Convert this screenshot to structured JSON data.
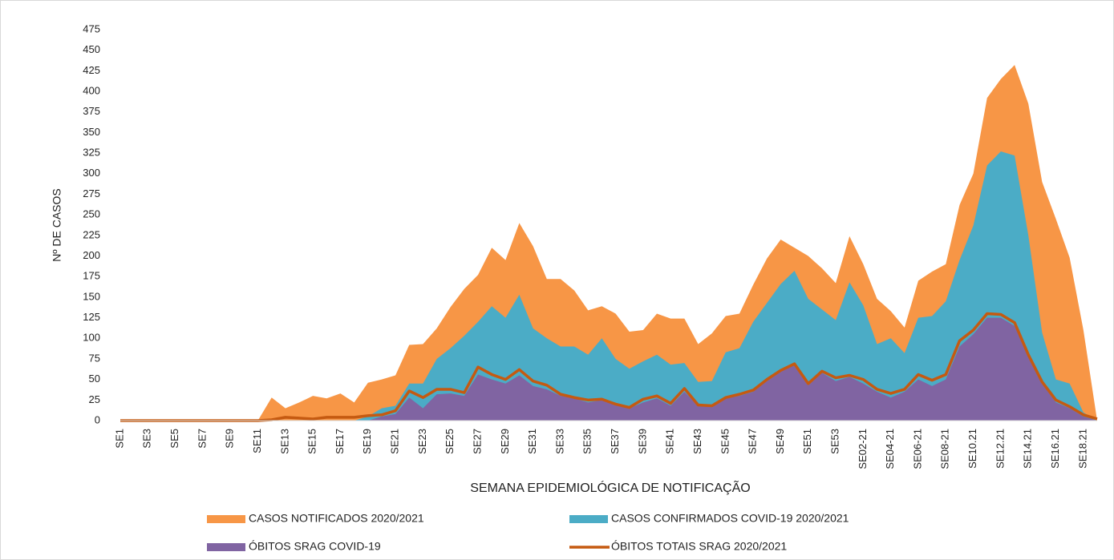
{
  "chart_data": {
    "type": "area",
    "ylabel": "Nº DE CASOS",
    "xlabel": "SEMANA EPIDEMIOLÓGICA DE NOTIFICAÇÃO",
    "categories": [
      "SE1",
      null,
      "SE3",
      null,
      "SE5",
      null,
      "SE7",
      null,
      "SE9",
      null,
      "SE11",
      null,
      "SE13",
      null,
      "SE15",
      null,
      "SE17",
      null,
      "SE19",
      null,
      "SE21",
      null,
      "SE23",
      null,
      "SE25",
      null,
      "SE27",
      null,
      "SE29",
      null,
      "SE31",
      null,
      "SE33",
      null,
      "SE35",
      null,
      "SE37",
      null,
      "SE39",
      null,
      "SE41",
      null,
      "SE43",
      null,
      "SE45",
      null,
      "SE47",
      null,
      "SE49",
      null,
      "SE51",
      null,
      "SE53",
      null,
      "SE02-21",
      null,
      "SE04-21",
      null,
      "SE06-21",
      null,
      "SE08-21",
      null,
      "SE10.21",
      null,
      "SE12.21",
      null,
      "SE14.21",
      null,
      "SE16.21",
      null,
      "SE18.21",
      null
    ],
    "ylim": [
      0,
      475
    ],
    "yticks": [
      0,
      25,
      50,
      75,
      100,
      125,
      150,
      175,
      200,
      225,
      250,
      275,
      300,
      325,
      350,
      375,
      400,
      425,
      450,
      475
    ],
    "series": [
      {
        "name": "CASOS NOTIFICADOS 2020/2021",
        "type": "area",
        "color": "#f79646",
        "values": [
          0,
          0,
          0,
          0,
          0,
          0,
          0,
          0,
          0,
          0,
          0,
          28,
          15,
          22,
          30,
          27,
          33,
          22,
          46,
          50,
          55,
          92,
          93,
          112,
          138,
          160,
          177,
          210,
          195,
          240,
          212,
          172,
          172,
          158,
          134,
          139,
          130,
          108,
          110,
          130,
          124,
          124,
          93,
          106,
          127,
          130,
          165,
          197,
          220,
          210,
          200,
          185,
          167,
          224,
          190,
          148,
          133,
          113,
          170,
          181,
          190,
          262,
          300,
          392,
          415,
          432,
          385,
          290,
          245,
          198,
          110,
          0
        ]
      },
      {
        "name": "CASOS CONFIRMADOS COVID-19 2020/2021",
        "type": "area",
        "color": "#4bacc6",
        "values": [
          0,
          0,
          0,
          0,
          0,
          0,
          0,
          0,
          0,
          0,
          0,
          0,
          0,
          0,
          0,
          0,
          0,
          0,
          5,
          15,
          18,
          45,
          45,
          75,
          88,
          103,
          120,
          139,
          125,
          153,
          112,
          100,
          90,
          90,
          80,
          100,
          75,
          63,
          72,
          80,
          68,
          70,
          47,
          48,
          83,
          88,
          120,
          143,
          166,
          182,
          148,
          135,
          122,
          168,
          140,
          93,
          100,
          82,
          125,
          127,
          145,
          195,
          237,
          310,
          327,
          322,
          225,
          107,
          50,
          45,
          10,
          0
        ]
      },
      {
        "name": "ÓBITOS SRAG COVID-19",
        "type": "area",
        "color": "#8064a2",
        "values": [
          0,
          0,
          0,
          0,
          0,
          0,
          0,
          0,
          0,
          0,
          0,
          0,
          0,
          0,
          0,
          0,
          0,
          0,
          0,
          5,
          8,
          28,
          15,
          32,
          33,
          30,
          56,
          50,
          45,
          55,
          42,
          38,
          30,
          27,
          22,
          25,
          20,
          15,
          22,
          27,
          18,
          35,
          18,
          17,
          27,
          30,
          35,
          48,
          60,
          67,
          43,
          58,
          48,
          53,
          45,
          35,
          28,
          35,
          50,
          42,
          50,
          90,
          105,
          125,
          125,
          115,
          78,
          45,
          22,
          15,
          5,
          0
        ]
      },
      {
        "name": "ÓBITOS TOTAIS SRAG 2020/2021",
        "type": "line",
        "color": "#c55a11",
        "values": [
          0,
          0,
          0,
          0,
          0,
          0,
          0,
          0,
          0,
          0,
          0,
          1,
          4,
          3,
          2,
          4,
          4,
          4,
          6,
          7,
          12,
          36,
          28,
          38,
          38,
          34,
          65,
          56,
          50,
          62,
          48,
          43,
          32,
          28,
          25,
          26,
          20,
          16,
          26,
          30,
          21,
          39,
          19,
          18,
          28,
          32,
          37,
          50,
          61,
          69,
          45,
          60,
          52,
          55,
          50,
          38,
          33,
          38,
          56,
          49,
          56,
          97,
          110,
          130,
          129,
          119,
          80,
          47,
          25,
          17,
          7,
          2
        ]
      }
    ]
  }
}
